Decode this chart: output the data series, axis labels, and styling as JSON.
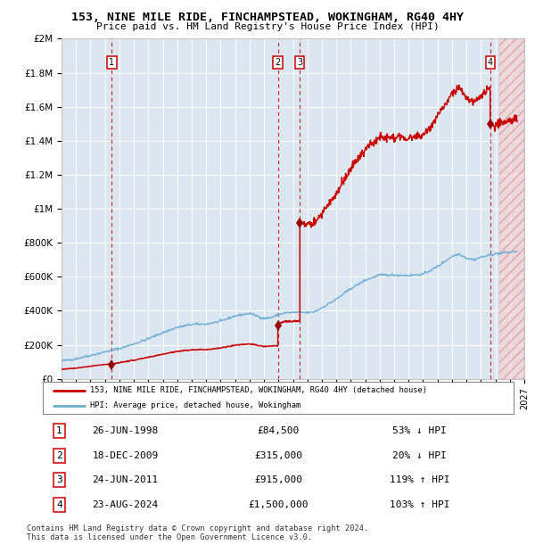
{
  "title": "153, NINE MILE RIDE, FINCHAMPSTEAD, WOKINGHAM, RG40 4HY",
  "subtitle": "Price paid vs. HM Land Registry's House Price Index (HPI)",
  "xlim": [
    1995,
    2027
  ],
  "ylim": [
    0,
    2000000
  ],
  "yticks": [
    0,
    200000,
    400000,
    600000,
    800000,
    1000000,
    1200000,
    1400000,
    1600000,
    1800000,
    2000000
  ],
  "ytick_labels": [
    "£0",
    "£200K",
    "£400K",
    "£600K",
    "£800K",
    "£1M",
    "£1.2M",
    "£1.4M",
    "£1.6M",
    "£1.8M",
    "£2M"
  ],
  "hpi_color": "#6baed6",
  "price_color": "#cc0000",
  "sale_marker_color": "#990000",
  "dashed_line_color": "#cc0000",
  "plot_bg_color": "#dce6f1",
  "sale_points": [
    {
      "year": 1998.48,
      "price": 84500,
      "label": "1"
    },
    {
      "year": 2009.96,
      "price": 315000,
      "label": "2"
    },
    {
      "year": 2011.48,
      "price": 915000,
      "label": "3"
    },
    {
      "year": 2024.64,
      "price": 1500000,
      "label": "4"
    }
  ],
  "legend_entries": [
    {
      "label": "153, NINE MILE RIDE, FINCHAMPSTEAD, WOKINGHAM, RG40 4HY (detached house)",
      "color": "#cc0000"
    },
    {
      "label": "HPI: Average price, detached house, Wokingham",
      "color": "#6baed6"
    }
  ],
  "table_rows": [
    {
      "num": "1",
      "date": "26-JUN-1998",
      "price": "£84,500",
      "hpi": "53% ↓ HPI"
    },
    {
      "num": "2",
      "date": "18-DEC-2009",
      "price": "£315,000",
      "hpi": "20% ↓ HPI"
    },
    {
      "num": "3",
      "date": "24-JUN-2011",
      "price": "£915,000",
      "hpi": "119% ↑ HPI"
    },
    {
      "num": "4",
      "date": "23-AUG-2024",
      "price": "£1,500,000",
      "hpi": "103% ↑ HPI"
    }
  ],
  "footnote1": "Contains HM Land Registry data © Crown copyright and database right 2024.",
  "footnote2": "This data is licensed under the Open Government Licence v3.0."
}
